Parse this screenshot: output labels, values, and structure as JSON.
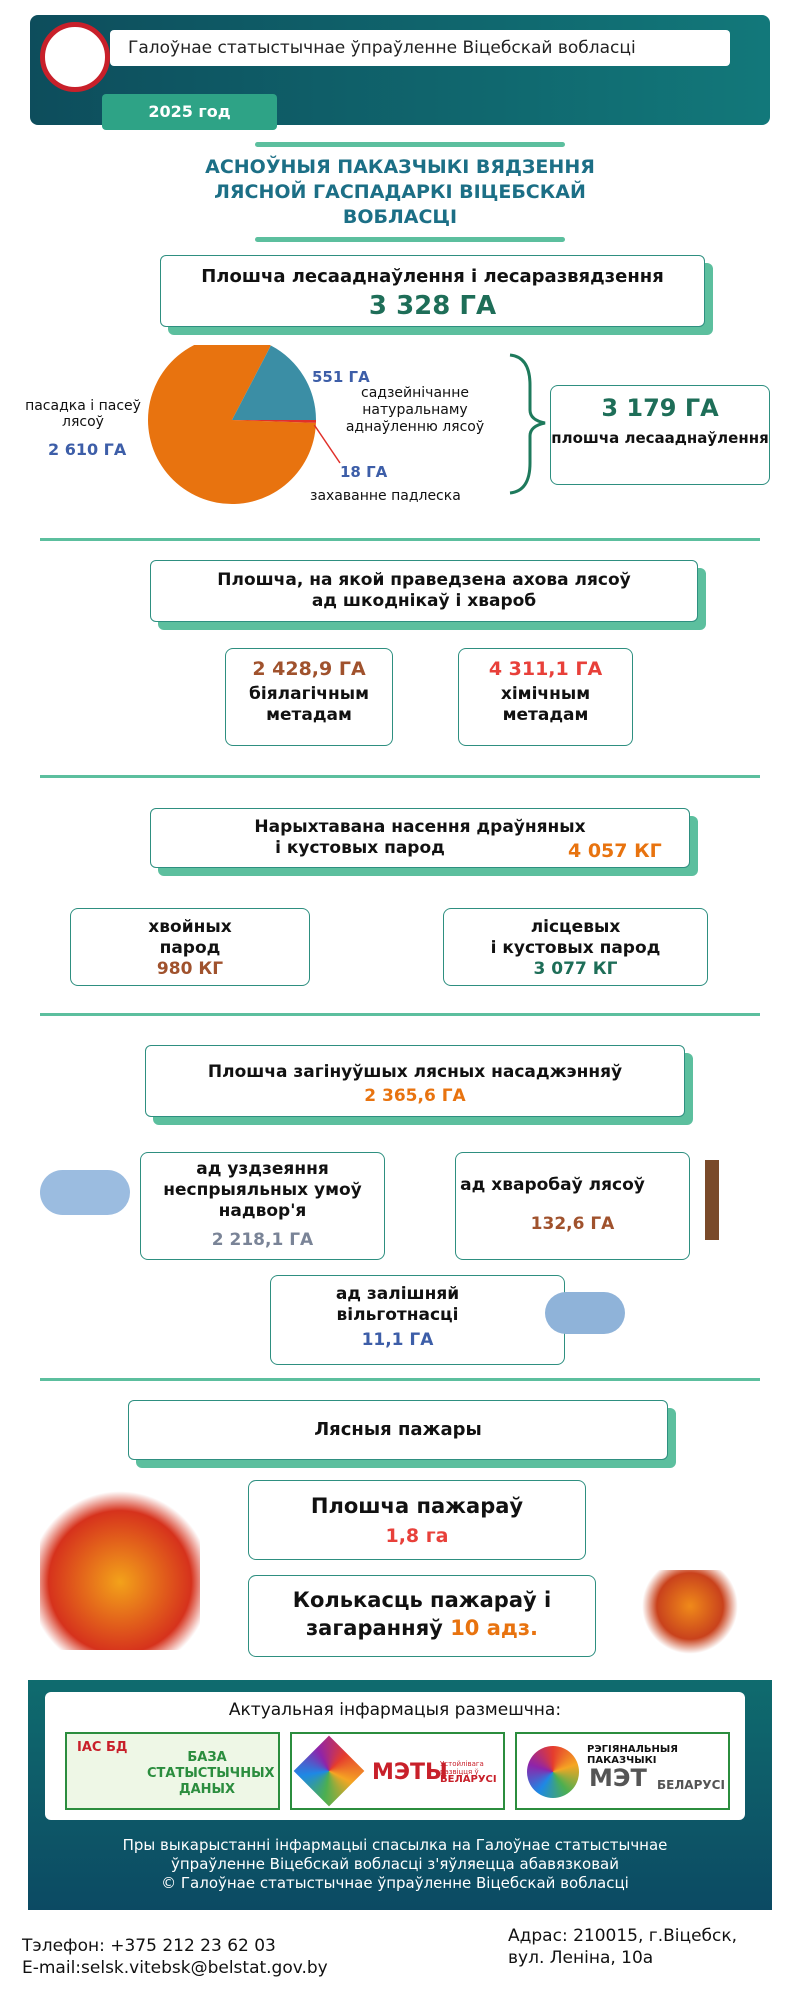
{
  "header": {
    "org": "Галоўнае статыстычнае ўпраўленне Віцебскай вобласці",
    "year": "2025 год"
  },
  "title": [
    "АСНОЎНЫЯ ПАКАЗЧЫКІ ВЯДЗЕННЯ",
    "ЛЯСНОЙ ГАСПАДАРКІ ВІЦЕБСКАЙ",
    "ВОБЛАСЦІ"
  ],
  "reforestation": {
    "heading": "Плошча лесааднаўлення і лесаразвядзення",
    "total": "3 328 ГА",
    "restoration_value": "3 179 ГА",
    "restoration_label": "плошча лесааднаўлення",
    "pie": {
      "type": "pie",
      "labels": [
        "пасадка і пасеў лясоў",
        "садзейнічанне натуральнаму аднаўленню лясоў",
        "захаванне падлеска"
      ],
      "values": [
        2610,
        551,
        18
      ],
      "value_labels": [
        "2 610 ГА",
        "551 ГА",
        "18 ГА"
      ],
      "colors": [
        "#e8730f",
        "#3b8ea5",
        "#e0302a"
      ]
    }
  },
  "protection": {
    "heading": [
      "Плошча, на якой праведзена ахова лясоў",
      "ад шкоднікаў і хвароб"
    ],
    "items": [
      {
        "value": "2 428,9 ГА",
        "label": [
          "біялагічным",
          "метадам"
        ]
      },
      {
        "value": "4 311,1 ГА",
        "label": [
          "хімічным",
          "метадам"
        ]
      }
    ]
  },
  "seeds": {
    "heading": [
      "Нарыхтавана насення драўняных",
      "і кустовых парод"
    ],
    "total": "4 057 КГ",
    "items": [
      {
        "label": [
          "хвойных",
          "парод"
        ],
        "value": "980 КГ"
      },
      {
        "label": [
          "лісцевых",
          "і кустовых парод"
        ],
        "value": "3 077 КГ"
      }
    ]
  },
  "dead": {
    "heading": "Плошча загінуўшых лясных насаджэнняў",
    "total": "2 365,6 ГА",
    "items": [
      {
        "label": [
          "ад уздзеяння",
          "неспрыяльных умоў",
          "надвор'я"
        ],
        "value": "2 218,1 ГА"
      },
      {
        "label": [
          "ад хваробаў лясоў"
        ],
        "value": "132,6 ГА"
      },
      {
        "label": [
          "ад залішняй",
          "вільготнасці"
        ],
        "value": "11,1 ГА"
      }
    ]
  },
  "fires": {
    "heading": "Лясныя пажары",
    "area_label": "Плошча пажараў",
    "area_value": "1,8 га",
    "count_label": [
      "Колькасць пажараў і",
      "загаранняў"
    ],
    "count_value": "10 адз."
  },
  "footer": {
    "intro": "Актуальная інфармацыя размешчна:",
    "logos": [
      {
        "tag": "ІАС БД",
        "text": [
          "БАЗА",
          "СТАТЫСТЫЧНЫХ",
          "ДАНЫХ"
        ]
      },
      {
        "tag": "МЭТЫ",
        "text": [
          "Устойлівага развіцця ў",
          "БЕЛАРУСІ"
        ]
      },
      {
        "tag": "МЭТ",
        "text": [
          "РЭГІЯНАЛЬНЫЯ ПАКАЗЧЫКІ",
          "БЕЛАРУСІ"
        ]
      }
    ],
    "notice": [
      "Пры выкарыстанні інфармацыі спасылка на Галоўнае статыстычнае",
      "ўпраўленне Віцебскай вобласці з'яўляецца абавязковай",
      "© Галоўнае статыстычнае ўпраўленне Віцебскай вобласці"
    ]
  },
  "contacts": {
    "phone": "Тэлефон: +375 212 23 62 03",
    "email": "E-mail:selsk.vitebsk@belstat.gov.by",
    "address": [
      "Адрас: 210015, г.Віцебск,",
      "вул. Леніна, 10а"
    ]
  }
}
